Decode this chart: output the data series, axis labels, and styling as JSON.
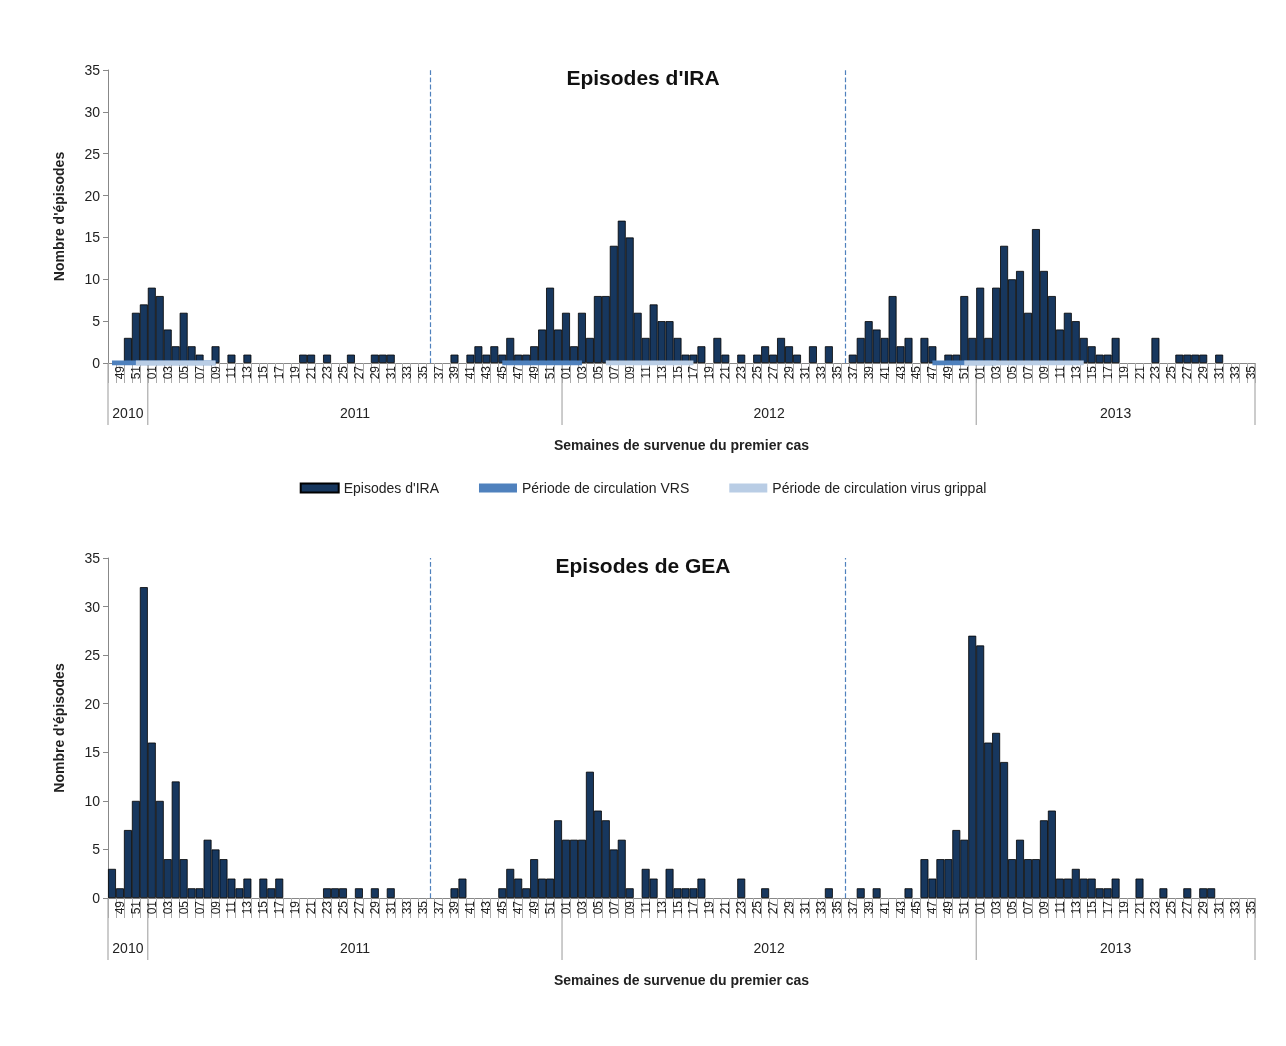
{
  "chart_data": [
    {
      "type": "bar",
      "title": "Episodes d'IRA",
      "xlabel": "Semaines de survenue du premier cas",
      "ylabel": "Nombre d'épisodes",
      "categories": [
        null,
        "49",
        null,
        "51",
        null,
        "01",
        null,
        "03",
        null,
        "05",
        null,
        "07",
        null,
        "09",
        null,
        "11",
        null,
        "13",
        null,
        "15",
        null,
        "17",
        null,
        "19",
        null,
        "21",
        null,
        "23",
        null,
        "25",
        null,
        "27",
        null,
        "29",
        null,
        "31",
        null,
        "33",
        null,
        "35",
        null,
        "37",
        null,
        "39",
        null,
        "41",
        null,
        "43",
        null,
        "45",
        null,
        "47",
        null,
        "49",
        null,
        "51",
        null,
        "01",
        null,
        "03",
        null,
        "05",
        null,
        "07",
        null,
        "09",
        null,
        "11",
        null,
        "13",
        null,
        "15",
        null,
        "17",
        null,
        "19",
        null,
        "21",
        null,
        "23",
        null,
        "25",
        null,
        "27",
        null,
        "29",
        null,
        "31",
        null,
        "33",
        null,
        "35",
        null,
        "37",
        null,
        "39",
        null,
        "41",
        null,
        "43",
        null,
        "45",
        null,
        "47",
        null,
        "49",
        null,
        "51",
        null,
        "01",
        null,
        "03",
        null,
        "05",
        null,
        "07",
        null,
        "09",
        null,
        "11",
        null,
        "13",
        null,
        "15",
        null,
        "17",
        null,
        "19",
        null,
        "21",
        null,
        "23",
        null,
        "25",
        null,
        "27",
        null,
        "29",
        null,
        "31",
        null,
        "33",
        null,
        "35"
      ],
      "series": [
        {
          "name": "Episodes d'IRA",
          "type": "bar",
          "color": "#17375e",
          "values": [
            0,
            0,
            3,
            6,
            7,
            9,
            8,
            4,
            2,
            6,
            2,
            1,
            0,
            2,
            0,
            1,
            0,
            1,
            0,
            0,
            0,
            0,
            0,
            0,
            1,
            1,
            0,
            1,
            0,
            0,
            1,
            0,
            0,
            1,
            1,
            1,
            0,
            0,
            0,
            0,
            0,
            0,
            0,
            1,
            0,
            1,
            2,
            1,
            2,
            1,
            3,
            1,
            1,
            2,
            4,
            9,
            4,
            6,
            2,
            6,
            3,
            8,
            8,
            14,
            17,
            15,
            6,
            3,
            7,
            5,
            5,
            3,
            1,
            1,
            2,
            0,
            3,
            1,
            0,
            1,
            0,
            1,
            2,
            1,
            3,
            2,
            1,
            0,
            2,
            0,
            2,
            0,
            0,
            1,
            3,
            5,
            4,
            3,
            8,
            2,
            3,
            0,
            3,
            2,
            0,
            1,
            1,
            8,
            3,
            9,
            3,
            9,
            14,
            10,
            11,
            6,
            16,
            11,
            8,
            4,
            6,
            5,
            3,
            2,
            1,
            1,
            3,
            0,
            0,
            0,
            0,
            3,
            0,
            0,
            1,
            1,
            1,
            1,
            0,
            1,
            0,
            0,
            0,
            0
          ]
        },
        {
          "name": "Période de circulation VRS",
          "type": "line",
          "color": "#4f81bd",
          "values": [
            0,
            0,
            0,
            0,
            0,
            0,
            0,
            0,
            0,
            0,
            0,
            0,
            0,
            0,
            null,
            null,
            null,
            null,
            null,
            null,
            null,
            null,
            null,
            null,
            null,
            null,
            null,
            null,
            null,
            null,
            null,
            null,
            null,
            null,
            null,
            null,
            null,
            null,
            null,
            null,
            null,
            null,
            null,
            null,
            null,
            null,
            null,
            null,
            null,
            0,
            0,
            0,
            0,
            0,
            0,
            0,
            0,
            0,
            0,
            0,
            null,
            null,
            null,
            null,
            null,
            null,
            null,
            null,
            null,
            null,
            null,
            null,
            null,
            null,
            null,
            null,
            null,
            null,
            null,
            null,
            null,
            null,
            null,
            null,
            null,
            null,
            null,
            null,
            null,
            null,
            null,
            null,
            null,
            null,
            null,
            null,
            null,
            null,
            null,
            null,
            null,
            null,
            null,
            0,
            0,
            0,
            0,
            0,
            0,
            0,
            0,
            0,
            null,
            null,
            null,
            null,
            null,
            null,
            null,
            null,
            null,
            null,
            null,
            null,
            null,
            null,
            null,
            null,
            null,
            null,
            null,
            null,
            null,
            null,
            null,
            null,
            null,
            null,
            null,
            null,
            null,
            null,
            null,
            null
          ]
        },
        {
          "name": "Période de circulation virus grippal",
          "type": "line",
          "color": "#b9cde5",
          "values": [
            null,
            null,
            null,
            0,
            0,
            0,
            0,
            0,
            0,
            0,
            0,
            0,
            0,
            0,
            null,
            null,
            null,
            null,
            null,
            null,
            null,
            null,
            null,
            null,
            null,
            null,
            null,
            null,
            null,
            null,
            null,
            null,
            null,
            null,
            null,
            null,
            null,
            null,
            null,
            null,
            null,
            null,
            null,
            null,
            null,
            null,
            null,
            null,
            null,
            null,
            null,
            null,
            null,
            null,
            null,
            null,
            null,
            null,
            null,
            null,
            null,
            null,
            0,
            0,
            0,
            0,
            0,
            0,
            0,
            0,
            0,
            0,
            0,
            0,
            null,
            null,
            null,
            null,
            null,
            null,
            null,
            null,
            null,
            null,
            null,
            null,
            null,
            null,
            null,
            null,
            null,
            null,
            null,
            null,
            null,
            null,
            null,
            null,
            null,
            null,
            null,
            null,
            null,
            null,
            null,
            null,
            null,
            0,
            0,
            0,
            0,
            0,
            0,
            0,
            0,
            0,
            0,
            0,
            0,
            0,
            0,
            0,
            0,
            null,
            null,
            null,
            null,
            null,
            null,
            null,
            null,
            null,
            null,
            null,
            null,
            null,
            null,
            null,
            null,
            null,
            null,
            null,
            null,
            null
          ]
        }
      ],
      "ylim": [
        0,
        35
      ],
      "yticks": [
        0,
        5,
        10,
        15,
        20,
        25,
        30,
        35
      ],
      "grid": false,
      "legend": "bottom",
      "ref_lines": [
        {
          "axis": "x",
          "color": "#4f81bd",
          "line_style": "dashed"
        },
        {
          "axis": "x",
          "color": "#4f81bd",
          "line_style": "dashed"
        }
      ],
      "annotations": [
        "2010",
        "2011",
        "2012",
        "2013"
      ]
    },
    {
      "type": "bar",
      "title": "Episodes de GEA",
      "xlabel": "Semaines de survenue du premier cas",
      "ylabel": "Nombre d'épisodes",
      "categories": [
        null,
        "49",
        null,
        "51",
        null,
        "01",
        null,
        "03",
        null,
        "05",
        null,
        "07",
        null,
        "09",
        null,
        "11",
        null,
        "13",
        null,
        "15",
        null,
        "17",
        null,
        "19",
        null,
        "21",
        null,
        "23",
        null,
        "25",
        null,
        "27",
        null,
        "29",
        null,
        "31",
        null,
        "33",
        null,
        "35",
        null,
        "37",
        null,
        "39",
        null,
        "41",
        null,
        "43",
        null,
        "45",
        null,
        "47",
        null,
        "49",
        null,
        "51",
        null,
        "01",
        null,
        "03",
        null,
        "05",
        null,
        "07",
        null,
        "09",
        null,
        "11",
        null,
        "13",
        null,
        "15",
        null,
        "17",
        null,
        "19",
        null,
        "21",
        null,
        "23",
        null,
        "25",
        null,
        "27",
        null,
        "29",
        null,
        "31",
        null,
        "33",
        null,
        "35",
        null,
        "37",
        null,
        "39",
        null,
        "41",
        null,
        "43",
        null,
        "45",
        null,
        "47",
        null,
        "49",
        null,
        "51",
        null,
        "01",
        null,
        "03",
        null,
        "05",
        null,
        "07",
        null,
        "09",
        null,
        "11",
        null,
        "13",
        null,
        "15",
        null,
        "17",
        null,
        "19",
        null,
        "21",
        null,
        "23",
        null,
        "25",
        null,
        "27",
        null,
        "29",
        null,
        "31",
        null,
        "33",
        null,
        "35"
      ],
      "color": "#17375e",
      "values": [
        3,
        1,
        7,
        10,
        32,
        16,
        10,
        4,
        12,
        4,
        1,
        1,
        6,
        5,
        4,
        2,
        1,
        2,
        0,
        2,
        1,
        2,
        0,
        0,
        0,
        0,
        0,
        1,
        1,
        1,
        0,
        1,
        0,
        1,
        0,
        1,
        0,
        0,
        0,
        0,
        0,
        0,
        0,
        1,
        2,
        0,
        0,
        0,
        0,
        1,
        3,
        2,
        1,
        4,
        2,
        2,
        8,
        6,
        6,
        6,
        13,
        9,
        8,
        5,
        6,
        1,
        0,
        3,
        2,
        0,
        3,
        1,
        1,
        1,
        2,
        0,
        0,
        0,
        0,
        2,
        0,
        0,
        1,
        0,
        0,
        0,
        0,
        0,
        0,
        0,
        1,
        0,
        0,
        0,
        1,
        0,
        1,
        0,
        0,
        0,
        1,
        0,
        4,
        2,
        4,
        4,
        7,
        6,
        27,
        26,
        16,
        17,
        14,
        4,
        6,
        4,
        4,
        8,
        9,
        2,
        2,
        3,
        2,
        2,
        1,
        1,
        2,
        0,
        0,
        2,
        0,
        0,
        1,
        0,
        0,
        1,
        0,
        1,
        1,
        0,
        0,
        0,
        0,
        0
      ],
      "ylim": [
        0,
        35
      ],
      "yticks": [
        0,
        5,
        10,
        15,
        20,
        25,
        30,
        35
      ],
      "grid": false,
      "legend": false,
      "ref_lines": [
        {
          "axis": "x",
          "color": "#4f81bd",
          "line_style": "dashed"
        },
        {
          "axis": "x",
          "color": "#4f81bd",
          "line_style": "dashed"
        }
      ],
      "annotations": [
        "2010",
        "2011",
        "2012",
        "2013"
      ]
    }
  ]
}
